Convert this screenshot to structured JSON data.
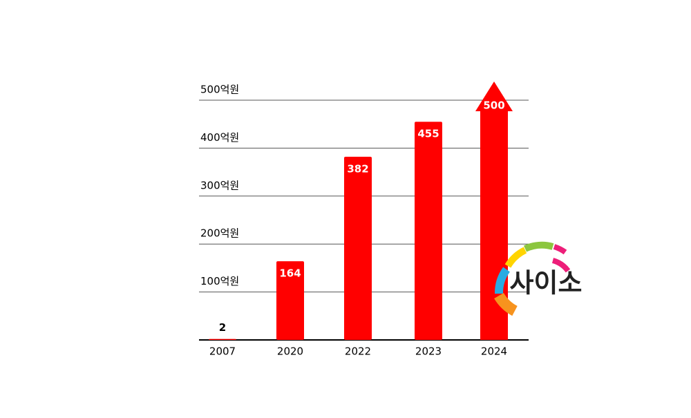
{
  "chart_data": {
    "type": "bar",
    "categories": [
      "2007",
      "2020",
      "2022",
      "2023",
      "2024"
    ],
    "values": [
      2,
      164,
      382,
      455,
      500
    ],
    "color": "#ff0000",
    "ylim": [
      0,
      500
    ],
    "yticks": [
      {
        "value": 100,
        "label": "100억원"
      },
      {
        "value": 200,
        "label": "200억원"
      },
      {
        "value": 300,
        "label": "300억원"
      },
      {
        "value": 400,
        "label": "400억원"
      },
      {
        "value": 500,
        "label": "500억원"
      }
    ],
    "grid": true
  },
  "logo": {
    "text": "사이소"
  }
}
